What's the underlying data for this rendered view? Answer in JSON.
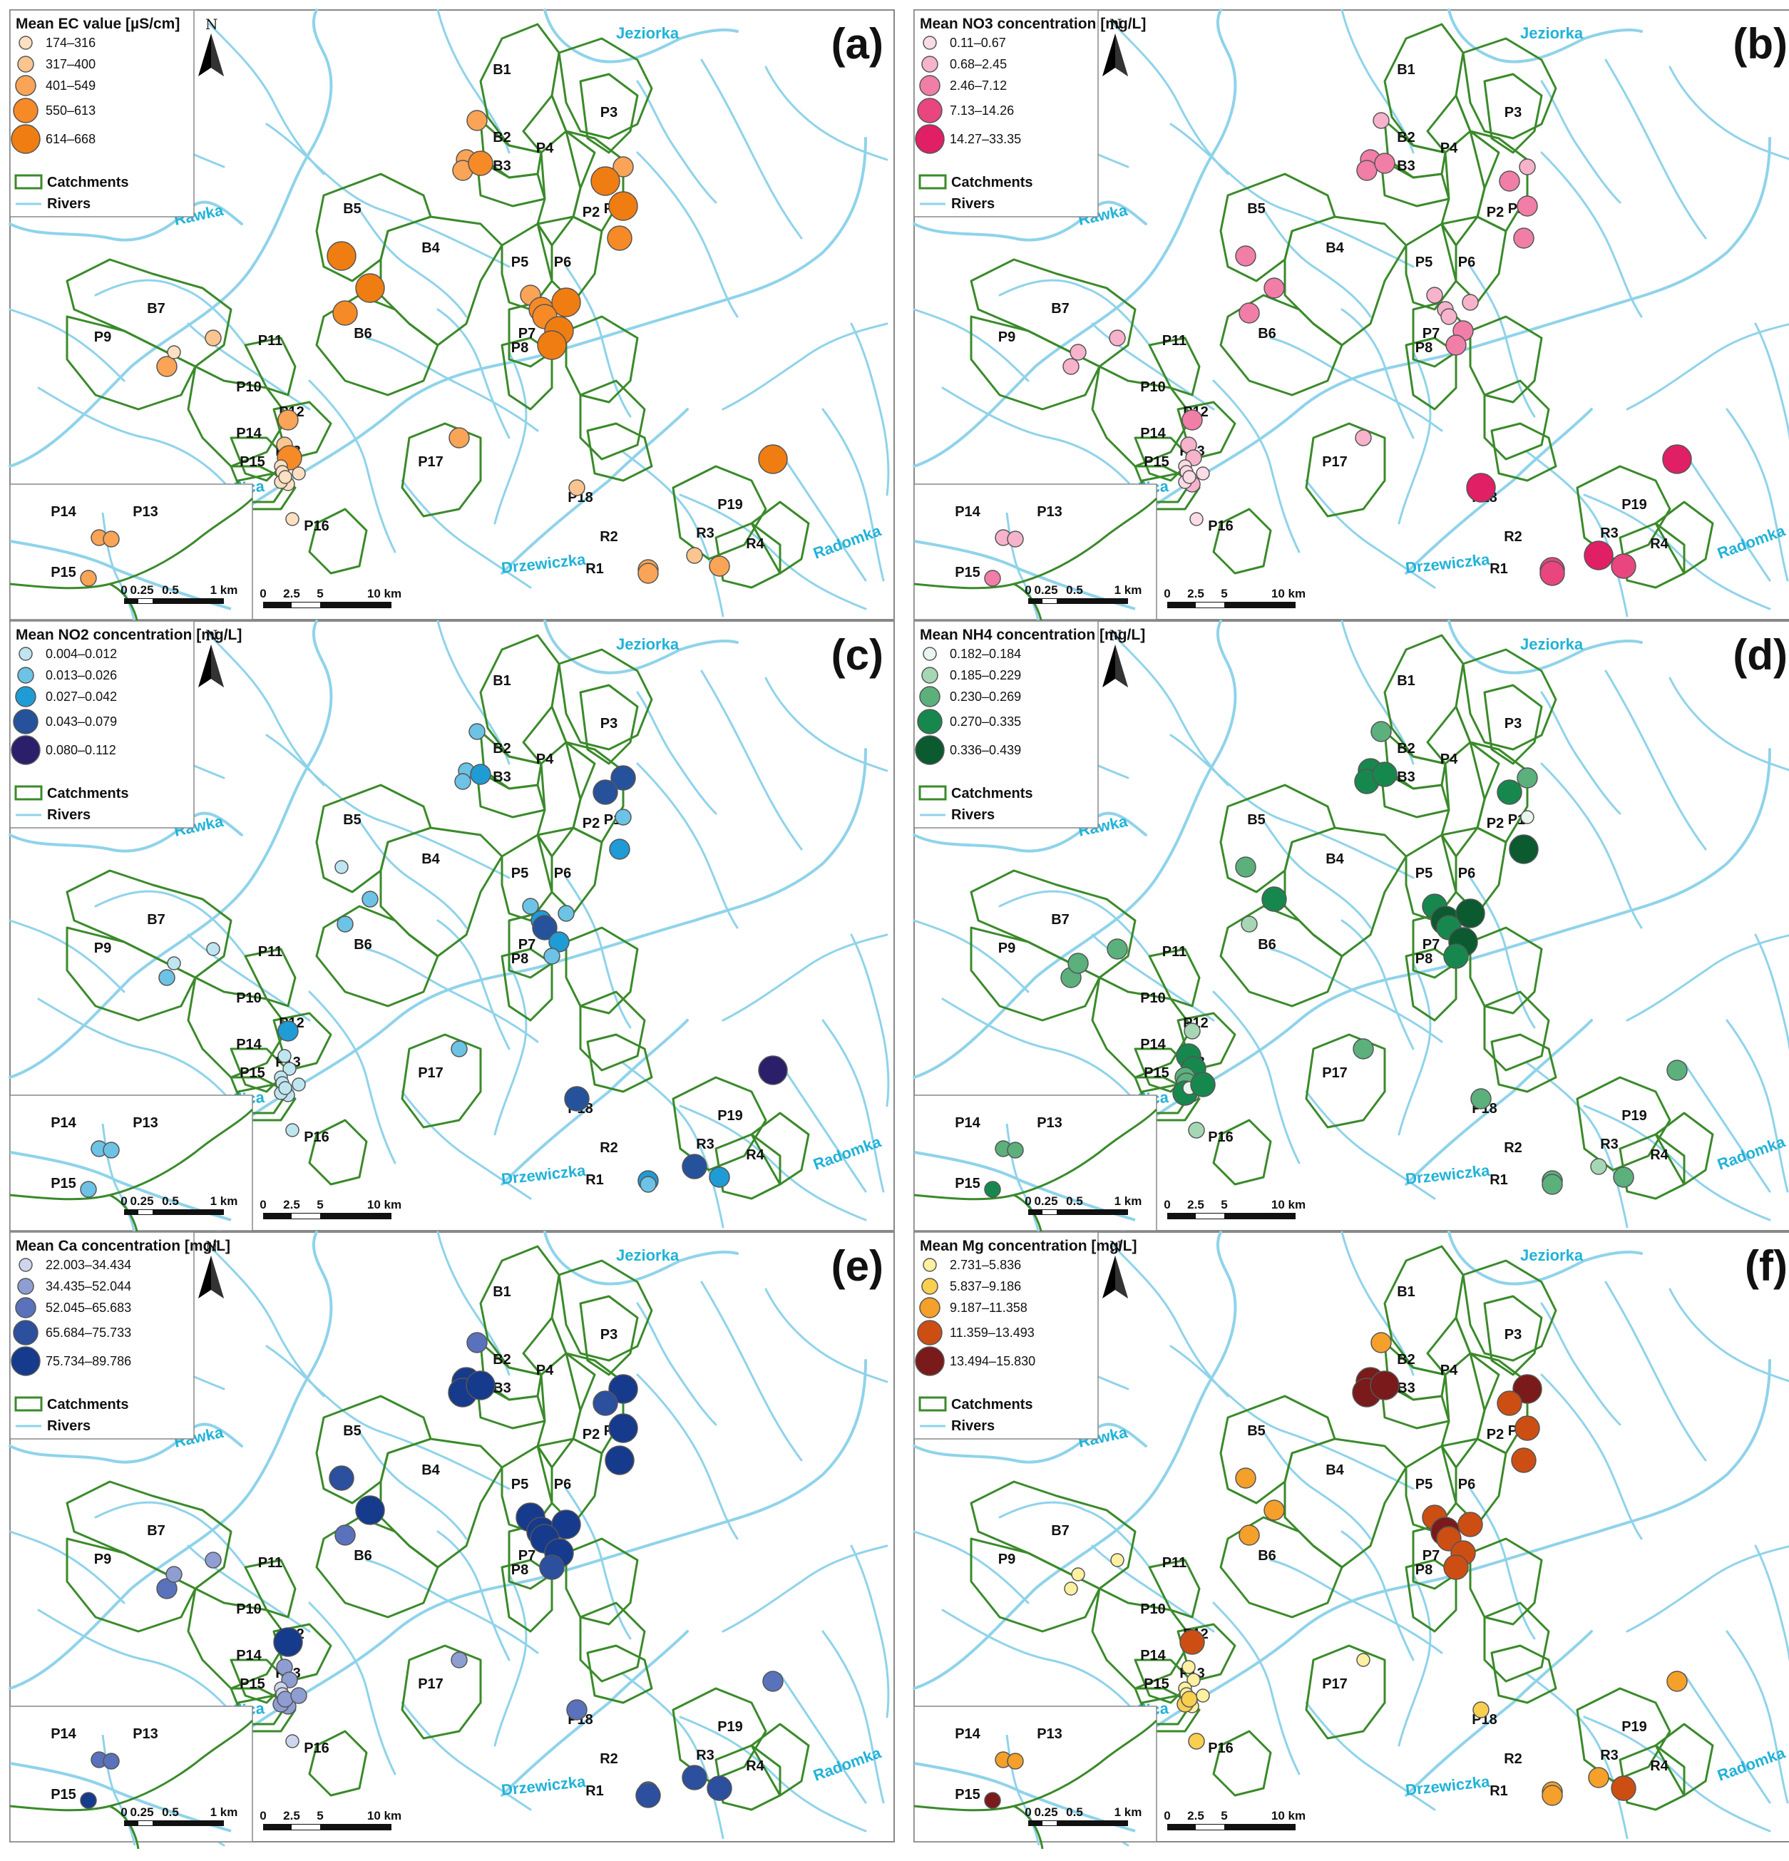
{
  "common": {
    "catchments_label": "Catchments",
    "rivers_label": "Rivers",
    "north_label": "N",
    "scale_main": [
      "0",
      "2.5",
      "5",
      "10 km"
    ],
    "scale_inset": [
      "0",
      "0.25",
      "0.5",
      "1 km"
    ],
    "river_names": [
      "Jeziorka",
      "Rawka",
      "Pilica",
      "Drzewiczka",
      "Radomka"
    ],
    "catchment_names": [
      "B1",
      "B2",
      "B3",
      "B4",
      "B5",
      "B6",
      "B7",
      "P1",
      "P2",
      "P3",
      "P4",
      "P5",
      "P6",
      "P7",
      "P8",
      "P9",
      "P10",
      "P11",
      "P12",
      "P13",
      "P14",
      "P15",
      "P16",
      "P17",
      "P18",
      "P19",
      "R1",
      "R2",
      "R3",
      "R4"
    ],
    "inset_names": [
      "P14",
      "P13",
      "P15"
    ],
    "colors": {
      "river": "#8fd3ea",
      "catchment": "#3a8a2a",
      "border": "#888888"
    }
  },
  "panels": [
    {
      "id": "a",
      "label": "(a)",
      "title": "Mean EC value [µS/cm]",
      "classes": [
        "174–316",
        "317–400",
        "401–549",
        "550–613",
        "614–668"
      ],
      "colors": [
        "#fde0c2",
        "#fbc590",
        "#f9a456",
        "#f68a26",
        "#f07d12"
      ],
      "site_classes": [
        2,
        2,
        2,
        3,
        2,
        4,
        4,
        3,
        2,
        3,
        4,
        3,
        4,
        4,
        4,
        4,
        3,
        1,
        2,
        2,
        0,
        0,
        1,
        3,
        0,
        0,
        0,
        0,
        0,
        2,
        1,
        2,
        2,
        1,
        4,
        2,
        0
      ]
    },
    {
      "id": "b",
      "label": "(b)",
      "title": "Mean NO3 concentration [mg/L]",
      "classes": [
        "0.11–0.67",
        "0.68–2.45",
        "2.46–7.12",
        "7.13–14.26",
        "14.27–33.35"
      ],
      "colors": [
        "#fbdbe6",
        "#f7b3cb",
        "#f17ea7",
        "#e9457f",
        "#e01f65"
      ],
      "site_classes": [
        1,
        2,
        2,
        2,
        1,
        2,
        2,
        2,
        1,
        1,
        1,
        1,
        2,
        2,
        2,
        2,
        2,
        1,
        1,
        2,
        1,
        1,
        1,
        1,
        0,
        0,
        0,
        0,
        0,
        1,
        4,
        3,
        3,
        4,
        4,
        3,
        0
      ]
    },
    {
      "id": "c",
      "label": "(c)",
      "title": "Mean NO2 concentration [mg/L]",
      "classes": [
        "0.004–0.012",
        "0.013–0.026",
        "0.027–0.042",
        "0.043–0.079",
        "0.080–0.112"
      ],
      "colors": [
        "#bfe6f0",
        "#6cc3e6",
        "#1f9bd6",
        "#25529b",
        "#2b1f6b"
      ],
      "site_classes": [
        1,
        1,
        1,
        2,
        3,
        3,
        1,
        2,
        1,
        2,
        1,
        3,
        2,
        1,
        0,
        1,
        1,
        0,
        1,
        2,
        0,
        0,
        0,
        0,
        0,
        0,
        0,
        0,
        0,
        1,
        3,
        2,
        1,
        3,
        4,
        2,
        0
      ]
    },
    {
      "id": "d",
      "label": "(d)",
      "title": "Mean NH4 concentration [mg/L]",
      "classes": [
        "0.182–0.184",
        "0.185–0.229",
        "0.230–0.269",
        "0.270–0.335",
        "0.336–0.439"
      ],
      "colors": [
        "#eaf5ee",
        "#a6d7b4",
        "#5bb07c",
        "#17884d",
        "#0b5a30"
      ],
      "site_classes": [
        2,
        3,
        3,
        3,
        2,
        3,
        0,
        4,
        3,
        4,
        4,
        3,
        4,
        3,
        2,
        3,
        1,
        2,
        2,
        1,
        2,
        0,
        3,
        3,
        2,
        2,
        3,
        0,
        3,
        2,
        2,
        2,
        2,
        1,
        2,
        2,
        1
      ]
    },
    {
      "id": "e",
      "label": "(e)",
      "title": "Mean Ca concentration [mg/L]",
      "classes": [
        "22.003–34.434",
        "34.435–52.044",
        "52.045–65.683",
        "65.684–75.733",
        "75.734–89.786"
      ],
      "colors": [
        "#ced6ee",
        "#8e9ed2",
        "#5a72bb",
        "#2c4f9e",
        "#163a8c"
      ],
      "site_classes": [
        2,
        4,
        4,
        4,
        4,
        3,
        4,
        4,
        4,
        4,
        4,
        4,
        4,
        3,
        3,
        4,
        2,
        1,
        2,
        4,
        1,
        1,
        1,
        1,
        0,
        0,
        1,
        1,
        1,
        1,
        2,
        2,
        3,
        3,
        2,
        3,
        0
      ]
    },
    {
      "id": "f",
      "label": "(f)",
      "title": "Mean Mg concentration [mg/L]",
      "classes": [
        "2.731–5.836",
        "5.837–9.186",
        "9.187–11.358",
        "11.359–13.493",
        "13.494–15.830"
      ],
      "colors": [
        "#fdf0a0",
        "#f9cf50",
        "#f4a02a",
        "#cd4e13",
        "#7a1a1a"
      ],
      "site_classes": [
        2,
        4,
        4,
        4,
        4,
        3,
        3,
        3,
        3,
        4,
        3,
        3,
        3,
        3,
        2,
        2,
        2,
        0,
        0,
        3,
        0,
        0,
        0,
        0,
        0,
        0,
        1,
        1,
        0,
        0,
        1,
        2,
        2,
        2,
        2,
        3,
        1
      ]
    }
  ]
}
